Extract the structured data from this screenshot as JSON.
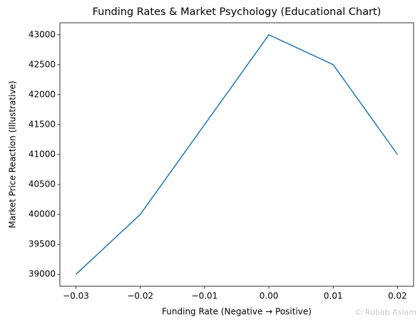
{
  "chart_data": {
    "type": "line",
    "title": "Funding Rates & Market Psychology (Educational Chart)",
    "x_label": "Funding Rate (Negative → Positive)",
    "y_label": "Market Price Reaction (Illustrative)",
    "watermark": "© Rubab Aslam",
    "x": [
      -0.03,
      -0.02,
      -0.01,
      0,
      0.01,
      0.02
    ],
    "series": [
      {
        "name": "Market Price Reaction",
        "color": "#1f77b4",
        "values": [
          39000,
          40000,
          41500,
          43000,
          42500,
          41000
        ]
      }
    ],
    "xlim": [
      -0.0325,
      0.0225
    ],
    "xticks": [
      {
        "value": -0.03,
        "label": "−0.03"
      },
      {
        "value": -0.02,
        "label": "−0.02"
      },
      {
        "value": -0.01,
        "label": "−0.01"
      },
      {
        "value": 0,
        "label": "0.00"
      },
      0.01,
      0.02
    ],
    "ylim": [
      38800,
      43200
    ],
    "yticks": [
      39000,
      39500,
      40000,
      40500,
      41000,
      41500,
      42000,
      42500,
      43000
    ],
    "grid": false
  }
}
